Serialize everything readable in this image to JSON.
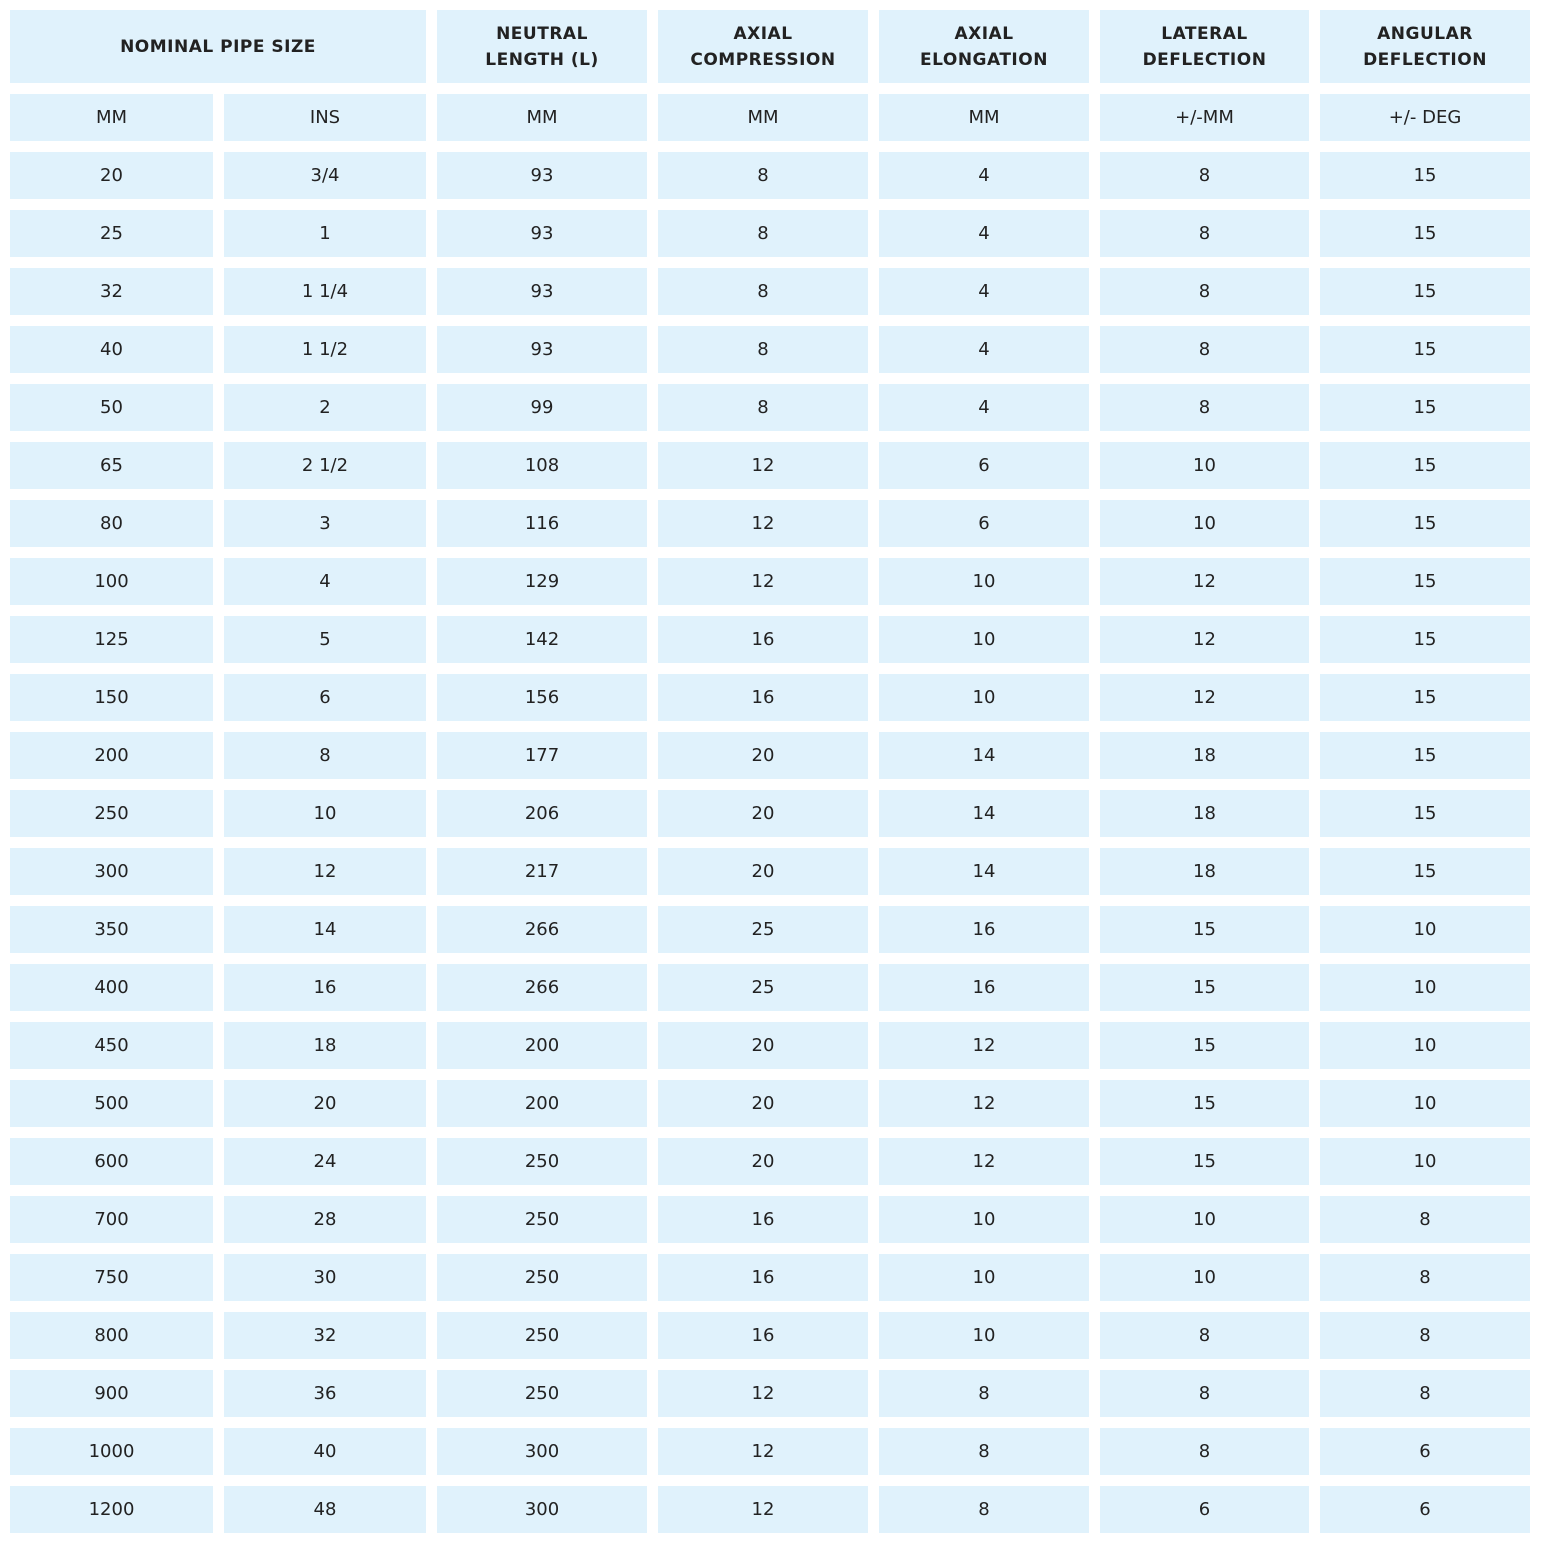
{
  "table": {
    "group_header": "NOMINAL PIPE SIZE",
    "column_headers": [
      [
        "NEUTRAL",
        "LENGTH (L)"
      ],
      [
        "AXIAL",
        "COMPRESSION"
      ],
      [
        "AXIAL",
        "ELONGATION"
      ],
      [
        "LATERAL",
        "DEFLECTION"
      ],
      [
        "ANGULAR",
        "DEFLECTION"
      ]
    ],
    "units": [
      "MM",
      "INS",
      "MM",
      "MM",
      "MM",
      "+/-MM",
      "+/- DEG"
    ],
    "rows": [
      [
        20,
        "3/4",
        93,
        8,
        4,
        8,
        15
      ],
      [
        25,
        1,
        93,
        8,
        4,
        8,
        15
      ],
      [
        32,
        "1 1/4",
        93,
        8,
        4,
        8,
        15
      ],
      [
        40,
        "1 1/2",
        93,
        8,
        4,
        8,
        15
      ],
      [
        50,
        2,
        99,
        8,
        4,
        8,
        15
      ],
      [
        65,
        "2 1/2",
        108,
        12,
        6,
        10,
        15
      ],
      [
        80,
        3,
        116,
        12,
        6,
        10,
        15
      ],
      [
        100,
        4,
        129,
        12,
        10,
        12,
        15
      ],
      [
        125,
        5,
        142,
        16,
        10,
        12,
        15
      ],
      [
        150,
        6,
        156,
        16,
        10,
        12,
        15
      ],
      [
        200,
        8,
        177,
        20,
        14,
        18,
        15
      ],
      [
        250,
        10,
        206,
        20,
        14,
        18,
        15
      ],
      [
        300,
        12,
        217,
        20,
        14,
        18,
        15
      ],
      [
        350,
        14,
        266,
        25,
        16,
        15,
        10
      ],
      [
        400,
        16,
        266,
        25,
        16,
        15,
        10
      ],
      [
        450,
        18,
        200,
        20,
        12,
        15,
        10
      ],
      [
        500,
        20,
        200,
        20,
        12,
        15,
        10
      ],
      [
        600,
        24,
        250,
        20,
        12,
        15,
        10
      ],
      [
        700,
        28,
        250,
        16,
        10,
        10,
        8
      ],
      [
        750,
        30,
        250,
        16,
        10,
        10,
        8
      ],
      [
        800,
        32,
        250,
        16,
        10,
        8,
        8
      ],
      [
        900,
        36,
        250,
        12,
        8,
        8,
        8
      ],
      [
        1000,
        40,
        300,
        12,
        8,
        8,
        6
      ],
      [
        1200,
        48,
        300,
        12,
        8,
        6,
        6
      ]
    ]
  }
}
